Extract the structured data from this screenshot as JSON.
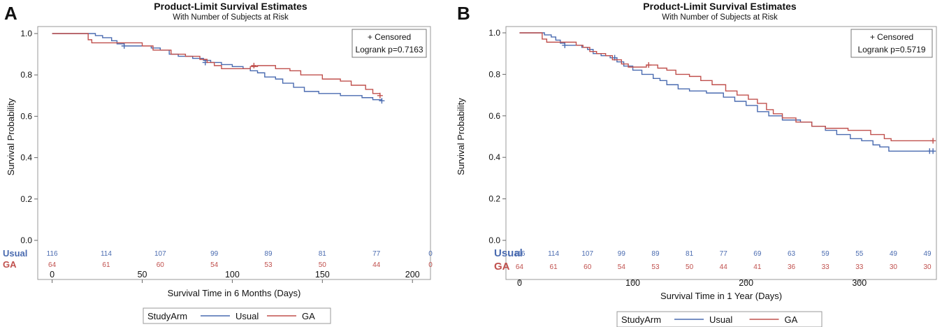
{
  "colors": {
    "usual": "#4a6bb0",
    "ga": "#c0504d",
    "text": "#111111",
    "frame": "#999999"
  },
  "legend": {
    "title": "StudyArm",
    "items": [
      "Usual",
      "GA"
    ]
  },
  "chart_data": [
    {
      "panel_label": "A",
      "type": "line",
      "title": "Product-Limit Survival Estimates",
      "subtitle": "With Number of Subjects at Risk",
      "xlabel": "Survival Time in 6 Months (Days)",
      "ylabel": "Survival Probability",
      "xlim": [
        -8,
        210
      ],
      "ylim": [
        0,
        1.0
      ],
      "xticks": [
        0,
        50,
        100,
        150,
        200
      ],
      "yticks": [
        0.0,
        0.2,
        0.4,
        0.6,
        0.8,
        1.0
      ],
      "ytick_labels": [
        "0.0",
        "0.2",
        "0.4",
        "0.6",
        "0.8",
        "1.0"
      ],
      "inset": {
        "censored": "+ Censored",
        "logrank": "Logrank p=0.7163"
      },
      "series": [
        {
          "name": "Usual",
          "steps": [
            [
              0,
              1.0
            ],
            [
              24,
              0.99
            ],
            [
              28,
              0.98
            ],
            [
              33,
              0.965
            ],
            [
              36,
              0.95
            ],
            [
              40,
              0.94
            ],
            [
              55,
              0.93
            ],
            [
              60,
              0.92
            ],
            [
              65,
              0.9
            ],
            [
              70,
              0.89
            ],
            [
              78,
              0.88
            ],
            [
              84,
              0.87
            ],
            [
              88,
              0.86
            ],
            [
              94,
              0.85
            ],
            [
              100,
              0.84
            ],
            [
              106,
              0.83
            ],
            [
              110,
              0.82
            ],
            [
              114,
              0.81
            ],
            [
              118,
              0.79
            ],
            [
              124,
              0.78
            ],
            [
              128,
              0.76
            ],
            [
              134,
              0.74
            ],
            [
              140,
              0.72
            ],
            [
              148,
              0.71
            ],
            [
              160,
              0.7
            ],
            [
              172,
              0.69
            ],
            [
              178,
              0.68
            ],
            [
              183,
              0.675
            ]
          ],
          "censored": [
            [
              40,
              0.94
            ],
            [
              85,
              0.86
            ],
            [
              183,
              0.675
            ]
          ],
          "at_risk": [
            116,
            114,
            107,
            99,
            89,
            81,
            77,
            0
          ]
        },
        {
          "name": "GA",
          "steps": [
            [
              0,
              1.0
            ],
            [
              20,
              0.97
            ],
            [
              22,
              0.955
            ],
            [
              50,
              0.94
            ],
            [
              56,
              0.92
            ],
            [
              66,
              0.9
            ],
            [
              74,
              0.89
            ],
            [
              82,
              0.875
            ],
            [
              86,
              0.86
            ],
            [
              90,
              0.845
            ],
            [
              94,
              0.83
            ],
            [
              110,
              0.84
            ],
            [
              114,
              0.845
            ],
            [
              124,
              0.83
            ],
            [
              132,
              0.82
            ],
            [
              138,
              0.8
            ],
            [
              150,
              0.78
            ],
            [
              160,
              0.77
            ],
            [
              166,
              0.75
            ],
            [
              174,
              0.73
            ],
            [
              178,
              0.71
            ],
            [
              182,
              0.7
            ]
          ],
          "censored": [
            [
              112,
              0.845
            ],
            [
              182,
              0.7
            ]
          ],
          "at_risk": [
            64,
            61,
            60,
            54,
            53,
            50,
            44,
            0
          ]
        }
      ],
      "at_risk_times": [
        0,
        30,
        60,
        90,
        120,
        150,
        180,
        210
      ]
    },
    {
      "panel_label": "B",
      "type": "line",
      "title": "Product-Limit Survival Estimates",
      "subtitle": "With Number of Subjects at Risk",
      "xlabel": "Survival Time in 1 Year (Days)",
      "ylabel": "Survival Probability",
      "xlim": [
        -12,
        368
      ],
      "ylim": [
        0,
        1.0
      ],
      "xticks": [
        0,
        100,
        200,
        300
      ],
      "yticks": [
        0.0,
        0.2,
        0.4,
        0.6,
        0.8,
        1.0
      ],
      "ytick_labels": [
        "0.0",
        "0.2",
        "0.4",
        "0.6",
        "0.8",
        "1.0"
      ],
      "inset": {
        "censored": "+ Censored",
        "logrank": "Logrank p=0.5719"
      },
      "series": [
        {
          "name": "Usual",
          "steps": [
            [
              0,
              1.0
            ],
            [
              22,
              0.99
            ],
            [
              28,
              0.98
            ],
            [
              32,
              0.965
            ],
            [
              36,
              0.95
            ],
            [
              40,
              0.94
            ],
            [
              55,
              0.93
            ],
            [
              60,
              0.92
            ],
            [
              65,
              0.9
            ],
            [
              72,
              0.89
            ],
            [
              80,
              0.88
            ],
            [
              86,
              0.86
            ],
            [
              92,
              0.84
            ],
            [
              100,
              0.82
            ],
            [
              108,
              0.8
            ],
            [
              118,
              0.78
            ],
            [
              124,
              0.77
            ],
            [
              130,
              0.75
            ],
            [
              140,
              0.73
            ],
            [
              150,
              0.72
            ],
            [
              165,
              0.71
            ],
            [
              180,
              0.69
            ],
            [
              190,
              0.67
            ],
            [
              200,
              0.65
            ],
            [
              210,
              0.62
            ],
            [
              220,
              0.6
            ],
            [
              232,
              0.58
            ],
            [
              248,
              0.57
            ],
            [
              258,
              0.55
            ],
            [
              270,
              0.53
            ],
            [
              280,
              0.51
            ],
            [
              292,
              0.49
            ],
            [
              302,
              0.48
            ],
            [
              312,
              0.46
            ],
            [
              318,
              0.45
            ],
            [
              326,
              0.43
            ],
            [
              365,
              0.43
            ]
          ],
          "censored": [
            [
              40,
              0.94
            ],
            [
              84,
              0.88
            ],
            [
              362,
              0.43
            ],
            [
              365,
              0.43
            ]
          ],
          "at_risk": [
            116,
            114,
            107,
            99,
            89,
            81,
            77,
            69,
            63,
            59,
            55,
            49,
            49
          ]
        },
        {
          "name": "GA",
          "steps": [
            [
              0,
              1.0
            ],
            [
              20,
              0.97
            ],
            [
              24,
              0.955
            ],
            [
              50,
              0.94
            ],
            [
              56,
              0.93
            ],
            [
              62,
              0.91
            ],
            [
              68,
              0.9
            ],
            [
              76,
              0.89
            ],
            [
              82,
              0.87
            ],
            [
              90,
              0.85
            ],
            [
              96,
              0.835
            ],
            [
              112,
              0.845
            ],
            [
              122,
              0.83
            ],
            [
              130,
              0.82
            ],
            [
              138,
              0.8
            ],
            [
              150,
              0.79
            ],
            [
              160,
              0.77
            ],
            [
              170,
              0.75
            ],
            [
              182,
              0.72
            ],
            [
              192,
              0.7
            ],
            [
              202,
              0.68
            ],
            [
              210,
              0.66
            ],
            [
              218,
              0.63
            ],
            [
              224,
              0.61
            ],
            [
              232,
              0.59
            ],
            [
              244,
              0.57
            ],
            [
              258,
              0.55
            ],
            [
              270,
              0.54
            ],
            [
              290,
              0.53
            ],
            [
              310,
              0.51
            ],
            [
              322,
              0.49
            ],
            [
              328,
              0.48
            ],
            [
              365,
              0.48
            ]
          ],
          "censored": [
            [
              114,
              0.845
            ],
            [
              365,
              0.48
            ]
          ],
          "at_risk": [
            64,
            61,
            60,
            54,
            53,
            50,
            44,
            41,
            36,
            33,
            33,
            30,
            30
          ]
        }
      ],
      "at_risk_times": [
        0,
        30,
        60,
        90,
        120,
        150,
        180,
        210,
        240,
        270,
        300,
        330,
        360
      ]
    }
  ]
}
